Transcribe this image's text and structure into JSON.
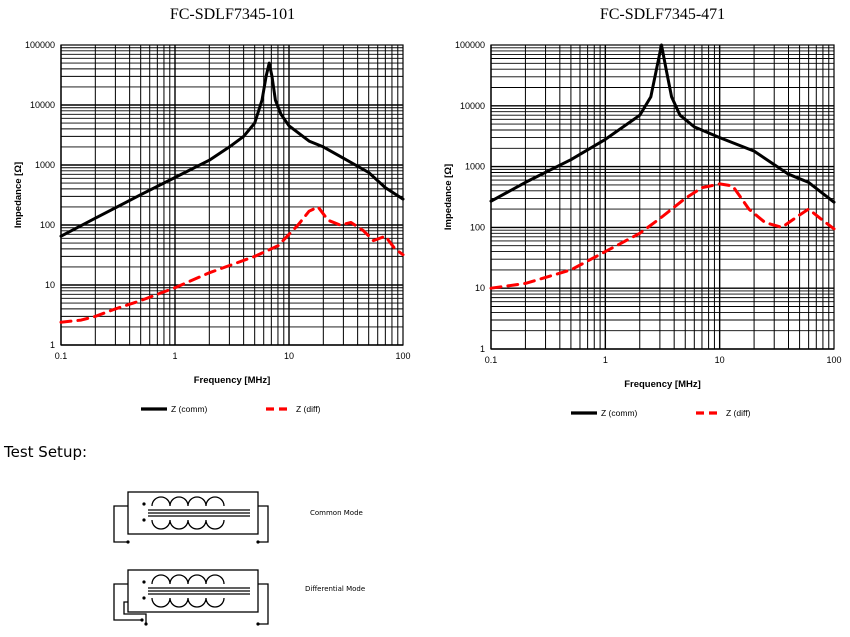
{
  "chart_data": [
    {
      "type": "line",
      "title": "FC-SDLF7345-101",
      "xlabel": "Frequency [MHz]",
      "ylabel": "Impedance [Ω]",
      "xscale": "log",
      "yscale": "log",
      "xlim": [
        0.1,
        100
      ],
      "ylim": [
        1,
        100000
      ],
      "x_ticks": [
        "0.1",
        "1",
        "10",
        "100"
      ],
      "y_ticks": [
        "1",
        "10",
        "100",
        "1000",
        "10000",
        "100000"
      ],
      "grid": true,
      "legend_position": "bottom",
      "series": [
        {
          "name": "Z (comm)",
          "color": "#000000",
          "dash": "solid",
          "points": [
            [
              0.1,
              65
            ],
            [
              0.2,
              130
            ],
            [
              0.5,
              320
            ],
            [
              1,
              620
            ],
            [
              2,
              1200
            ],
            [
              3,
              2000
            ],
            [
              4,
              3000
            ],
            [
              5,
              5000
            ],
            [
              5.8,
              12000
            ],
            [
              6.3,
              30000
            ],
            [
              6.7,
              50000
            ],
            [
              7.1,
              30000
            ],
            [
              7.6,
              12000
            ],
            [
              8.5,
              7000
            ],
            [
              10,
              4500
            ],
            [
              15,
              2500
            ],
            [
              20,
              2000
            ],
            [
              30,
              1300
            ],
            [
              50,
              750
            ],
            [
              70,
              420
            ],
            [
              100,
              270
            ]
          ]
        },
        {
          "name": "Z (diff)",
          "color": "#ff0000",
          "dash": "dashed",
          "points": [
            [
              0.1,
              2.4
            ],
            [
              0.15,
              2.6
            ],
            [
              0.2,
              3.0
            ],
            [
              0.3,
              4.0
            ],
            [
              0.5,
              5.5
            ],
            [
              1,
              9
            ],
            [
              2,
              16
            ],
            [
              5,
              30
            ],
            [
              8,
              45
            ],
            [
              12,
              100
            ],
            [
              15,
              170
            ],
            [
              18,
              200
            ],
            [
              22,
              120
            ],
            [
              28,
              100
            ],
            [
              35,
              110
            ],
            [
              45,
              80
            ],
            [
              55,
              55
            ],
            [
              70,
              65
            ],
            [
              85,
              40
            ],
            [
              100,
              32
            ]
          ]
        }
      ]
    },
    {
      "type": "line",
      "title": "FC-SDLF7345-471",
      "xlabel": "Frequency [MHz]",
      "ylabel": "Impedance [Ω]",
      "xscale": "log",
      "yscale": "log",
      "xlim": [
        0.1,
        100
      ],
      "ylim": [
        1,
        100000
      ],
      "x_ticks": [
        "0.1",
        "1",
        "10",
        "100"
      ],
      "y_ticks": [
        "1",
        "10",
        "100",
        "1000",
        "10000",
        "100000"
      ],
      "grid": true,
      "legend_position": "bottom",
      "series": [
        {
          "name": "Z (comm)",
          "color": "#000000",
          "dash": "solid",
          "points": [
            [
              0.1,
              270
            ],
            [
              0.2,
              550
            ],
            [
              0.5,
              1300
            ],
            [
              1,
              2800
            ],
            [
              2,
              7000
            ],
            [
              2.5,
              14000
            ],
            [
              2.8,
              40000
            ],
            [
              3.1,
              100000
            ],
            [
              3.4,
              40000
            ],
            [
              3.8,
              14000
            ],
            [
              4.5,
              7000
            ],
            [
              6,
              4500
            ],
            [
              10,
              3000
            ],
            [
              20,
              1800
            ],
            [
              40,
              750
            ],
            [
              60,
              550
            ],
            [
              100,
              260
            ]
          ]
        },
        {
          "name": "Z (diff)",
          "color": "#ff0000",
          "dash": "dashed",
          "points": [
            [
              0.1,
              10
            ],
            [
              0.2,
              12
            ],
            [
              0.5,
              20
            ],
            [
              1,
              40
            ],
            [
              2,
              80
            ],
            [
              3,
              140
            ],
            [
              5,
              300
            ],
            [
              7,
              450
            ],
            [
              10,
              520
            ],
            [
              13,
              480
            ],
            [
              18,
              200
            ],
            [
              25,
              120
            ],
            [
              35,
              100
            ],
            [
              50,
              160
            ],
            [
              60,
              200
            ],
            [
              80,
              130
            ],
            [
              100,
              95
            ]
          ]
        }
      ]
    }
  ],
  "test_setup": {
    "heading": "Test Setup:",
    "common_mode_label": "Common Mode",
    "differential_mode_label": "Differential Mode"
  }
}
